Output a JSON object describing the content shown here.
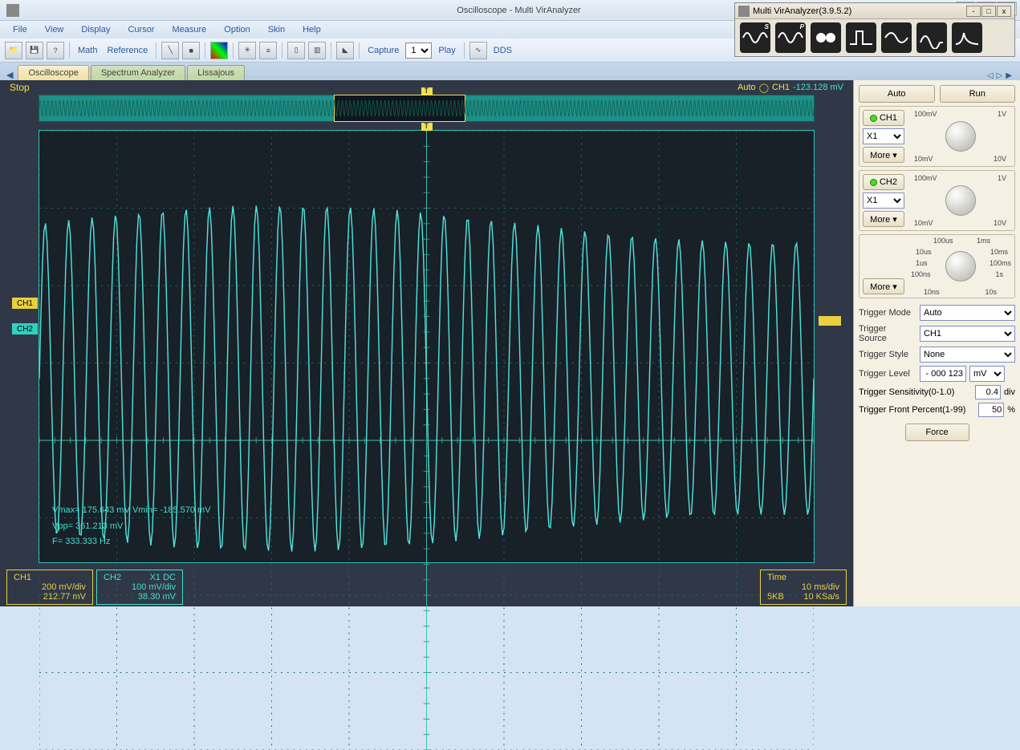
{
  "window": {
    "title": "Oscilloscope - Multi VirAnalyzer",
    "min": "-",
    "max": "□",
    "close": "X"
  },
  "menu": [
    "File",
    "View",
    "Display",
    "Cursor",
    "Measure",
    "Option",
    "Skin",
    "Help"
  ],
  "toolbar": {
    "math": "Math",
    "reference": "Reference",
    "capture": "Capture",
    "capture_value": "1",
    "play": "Play",
    "dds": "DDS"
  },
  "tabs": {
    "active": "Oscilloscope",
    "b": "Spectrum Analyzer",
    "c": "Lissajous"
  },
  "float": {
    "title": "Multi VirAnalyzer(3.9.5.2)",
    "tools": [
      "S",
      "P",
      "",
      "",
      "",
      "",
      ""
    ]
  },
  "scope": {
    "stop": "Stop",
    "auto": "Auto",
    "trig_ch": "CH1",
    "trig_val": "-123.128 mV",
    "ch1_tag": "CH1",
    "ch2_tag": "CH2",
    "overview_fill_start": 0,
    "overview_fill_end": 100,
    "overview_window_start": 38,
    "overview_window_end": 55,
    "trigger_pos_pct": 50,
    "ch1_offset_pct": 40,
    "ch2_offset_pct": 46,
    "trg_tag_pct": 44
  },
  "wave": {
    "grid_cols": 10,
    "grid_rows": 8,
    "grid_color": "#207060",
    "tick_color": "#30a090",
    "center_color": "#40c0b0",
    "wave_color": "#50e0d8",
    "wave_cycles": 33,
    "wave_ampl_pct": 25,
    "ampl_variation": 0.12
  },
  "measure": {
    "line1": "Vmax= 175.643 mV  Vmin=  -185.570 mV",
    "line2": "Vpp= 361.213 mV",
    "line3": "F= 333.333 Hz"
  },
  "bottom": {
    "ch1": {
      "name": "CH1",
      "vdiv": "200 mV/div",
      "offset": "212.77 mV"
    },
    "ch2": {
      "name": "CH2",
      "xdc": "X1  DC",
      "vdiv": "100 mV/div",
      "offset": "38.30 mV"
    },
    "time": {
      "name": "Time",
      "tdiv": "10 ms/div",
      "buf": "5KB",
      "rate": "10 KSa/s"
    }
  },
  "side": {
    "auto": "Auto",
    "run": "Run",
    "ch1": "CH1",
    "ch2": "CH2",
    "x1": "X1",
    "more": "More ▾",
    "knob_vlabels": {
      "tl": "100mV",
      "tr": "1V",
      "bl": "10mV",
      "br": "10V"
    },
    "knob_tlabels": {
      "t1": "100us",
      "t2": "1ms",
      "l1": "10us",
      "r1": "10ms",
      "l2": "1us",
      "r2": "100ms",
      "l3": "100ns",
      "r3": "1s",
      "b1": "10ns",
      "b2": "10s"
    },
    "trig_mode_l": "Trigger Mode",
    "trig_mode_v": "Auto",
    "trig_src_l": "Trigger Source",
    "trig_src_v": "CH1",
    "trig_sty_l": "Trigger Style",
    "trig_sty_v": "None",
    "trig_lvl_l": "Trigger Level",
    "trig_lvl_v": "- 000 123",
    "trig_lvl_u": "mV",
    "trig_sens_l": "Trigger Sensitivity(0-1.0)",
    "trig_sens_v": "0.4",
    "trig_sens_u": "div",
    "trig_pct_l": "Trigger Front Percent(1-99)",
    "trig_pct_v": "50",
    "trig_pct_u": "%",
    "force": "Force"
  },
  "colors": {
    "yellow": "#e8d040",
    "cyan": "#40e0d0",
    "scope_bg": "#303848",
    "grid_bg": "#182028"
  }
}
